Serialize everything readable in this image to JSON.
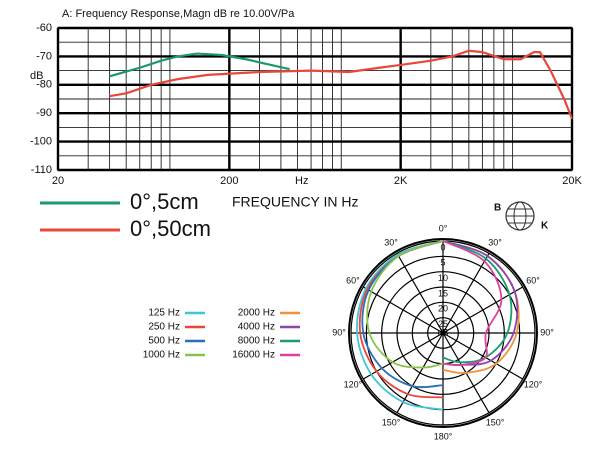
{
  "chart_data": [
    {
      "type": "line",
      "title": "A: Frequency Response,Magn dB re 10.00V/Pa",
      "ylabel": "dB",
      "xlabel": "Hz",
      "annotation": "FREQUENCY IN Hz",
      "xscale": "log",
      "grid": true,
      "xlim": [
        20,
        20000
      ],
      "ylim": [
        -110,
        -60
      ],
      "xticks": [
        20,
        200,
        {
          "value": 2000,
          "label": "2K"
        },
        {
          "value": 20000,
          "label": "20K"
        }
      ],
      "x_minor_ticks": [
        30,
        40,
        50,
        60,
        70,
        80,
        90,
        300,
        400,
        500,
        600,
        700,
        800,
        900,
        3000,
        4000,
        5000,
        6000,
        7000,
        8000,
        9000
      ],
      "yticks": [
        -60,
        -70,
        -80,
        -90,
        -100,
        -110
      ],
      "y_minor_ticks": [
        -65,
        -75,
        -85,
        -95,
        -105
      ],
      "series": [
        {
          "name": "0°,5cm",
          "color": "#1a9a6a",
          "x": [
            40,
            60,
            80,
            100,
            130,
            180,
            250,
            350,
            450
          ],
          "values": [
            -77,
            -74,
            -71.5,
            -70,
            -69,
            -69.5,
            -71,
            -73,
            -74.5
          ]
        },
        {
          "name": "0°,50cm",
          "color": "#e8473c",
          "x": [
            40,
            50,
            70,
            100,
            150,
            300,
            600,
            1000,
            1500,
            2000,
            3000,
            4000,
            5000,
            6000,
            8000,
            10000,
            12000,
            13000,
            15000,
            18000,
            20000
          ],
          "values": [
            -84,
            -83,
            -80,
            -78,
            -76.5,
            -75.5,
            -75,
            -75.5,
            -74,
            -73,
            -71.5,
            -70,
            -68,
            -68.5,
            -71,
            -71,
            -68.5,
            -68.5,
            -75,
            -85,
            -92
          ]
        }
      ]
    },
    {
      "type": "polar",
      "logo": {
        "left": "B",
        "right": "K"
      },
      "rlabel": "dB",
      "rlim": [
        0,
        30
      ],
      "rticks": [
        0,
        5,
        10,
        15,
        20,
        25
      ],
      "thetaticks": [
        {
          "value": 0,
          "label": "0°"
        },
        {
          "value": 30,
          "label": "30°"
        },
        {
          "value": 60,
          "label": "60°"
        },
        {
          "value": 90,
          "label": "90°"
        },
        {
          "value": 120,
          "label": "120°"
        },
        {
          "value": 150,
          "label": "150°"
        },
        {
          "value": 180,
          "label": "180°"
        }
      ],
      "series": [
        {
          "name": "125 Hz",
          "color": "#3ec5d8",
          "theta": [
            0,
            -30,
            -60,
            -90,
            -120,
            -150,
            -180
          ],
          "values": [
            0,
            0.5,
            1,
            2,
            3,
            4,
            5
          ]
        },
        {
          "name": "250 Hz",
          "color": "#e8473c",
          "theta": [
            0,
            -30,
            -60,
            -90,
            -120,
            -150,
            -180
          ],
          "values": [
            0,
            1,
            1.5,
            3,
            5,
            7,
            9
          ]
        },
        {
          "name": "500 Hz",
          "color": "#2d6fb8",
          "theta": [
            0,
            -30,
            -60,
            -90,
            -120,
            -150,
            -180
          ],
          "values": [
            0,
            1,
            2,
            4,
            7,
            10,
            13
          ]
        },
        {
          "name": "1000 Hz",
          "color": "#8bc34a",
          "theta": [
            0,
            -30,
            -60,
            -90,
            -120,
            -150,
            -180
          ],
          "values": [
            0,
            1,
            3,
            6,
            11,
            17,
            20
          ]
        },
        {
          "name": "2000 Hz",
          "color": "#f0923a",
          "theta": [
            0,
            30,
            60,
            90,
            120,
            150,
            180
          ],
          "values": [
            0,
            1,
            3,
            6,
            10,
            15,
            18
          ]
        },
        {
          "name": "4000 Hz",
          "color": "#8e44ad",
          "theta": [
            0,
            30,
            60,
            90,
            120,
            150,
            180
          ],
          "values": [
            0,
            1,
            3,
            7,
            12,
            18,
            20
          ]
        },
        {
          "name": "8000 Hz",
          "color": "#1a9e6e",
          "theta": [
            0,
            30,
            60,
            90,
            120,
            150,
            180
          ],
          "values": [
            0,
            2,
            5,
            9,
            14,
            19,
            22
          ]
        },
        {
          "name": "16000 Hz",
          "color": "#e040a0",
          "theta": [
            0,
            30,
            60,
            90,
            120,
            150,
            180
          ],
          "values": [
            0,
            3,
            8,
            16,
            14,
            18,
            20
          ]
        }
      ]
    }
  ]
}
